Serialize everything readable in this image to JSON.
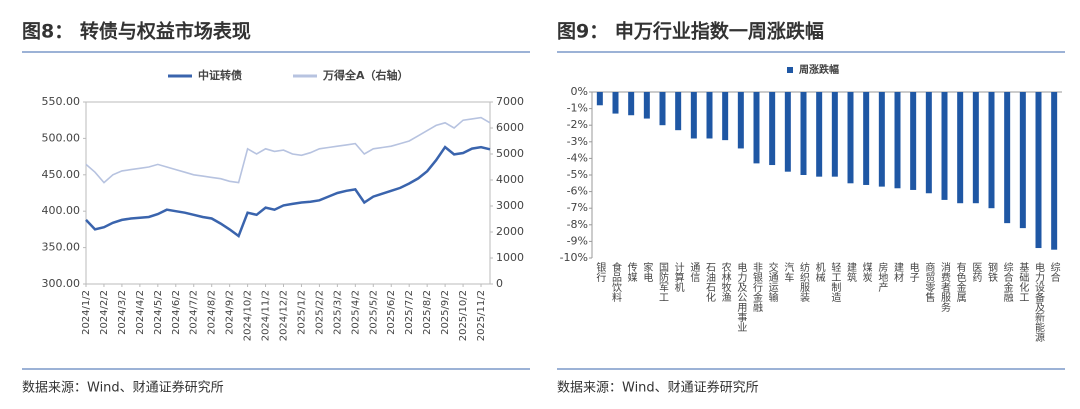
{
  "chart_data": [
    {
      "type": "line",
      "title": "图8： 转债与权益市场表现",
      "source": "数据来源：Wind、财通证券研究所",
      "categories": [
        "2024/1/2",
        null,
        "2024/2/2",
        null,
        "2024/3/2",
        null,
        "2024/4/2",
        null,
        "2024/5/2",
        null,
        "2024/6/2",
        null,
        "2024/7/2",
        null,
        "2024/8/2",
        null,
        "2024/9/2",
        null,
        "2024/10/2",
        null,
        "2024/11/2",
        null,
        "2024/12/2",
        null,
        "2025/1/2",
        null,
        "2025/2/2",
        null,
        "2025/3/2",
        null,
        "2025/4/2",
        null,
        "2025/5/2",
        null,
        "2025/6/2",
        null,
        "2025/7/2",
        null,
        "2025/8/2",
        null,
        "2025/9/2",
        null,
        "2025/10/2",
        null,
        "2025/11/2",
        null
      ],
      "series": [
        {
          "name": "中证转债",
          "color": "#3a64ad",
          "values": [
            388,
            375,
            378,
            384,
            388,
            390,
            391,
            392,
            396,
            402,
            400,
            398,
            395,
            392,
            390,
            383,
            375,
            366,
            398,
            395,
            405,
            402,
            408,
            410,
            412,
            413,
            415,
            420,
            425,
            428,
            430,
            412,
            420,
            424,
            428,
            432,
            438,
            445,
            455,
            470,
            488,
            478,
            480,
            486,
            488,
            485
          ]
        },
        {
          "name": "万得全A（右轴）",
          "color": "#b7c3e0",
          "axis": "y2",
          "values": [
            4600,
            4300,
            3900,
            4200,
            4350,
            4400,
            4450,
            4500,
            4600,
            4500,
            4400,
            4300,
            4200,
            4150,
            4100,
            4050,
            3950,
            3900,
            5200,
            5000,
            5200,
            5100,
            5150,
            5000,
            4950,
            5050,
            5200,
            5250,
            5300,
            5350,
            5400,
            5000,
            5200,
            5250,
            5300,
            5400,
            5500,
            5700,
            5900,
            6100,
            6200,
            6000,
            6300,
            6350,
            6400,
            6200
          ]
        }
      ],
      "ylim": [
        300,
        550
      ],
      "yticks": [
        {
          "value": 300,
          "label": "300.00"
        },
        {
          "value": 350,
          "label": "350.00"
        },
        {
          "value": 400,
          "label": "400.00"
        },
        {
          "value": 450,
          "label": "450.00"
        },
        {
          "value": 500,
          "label": "500.00"
        },
        {
          "value": 550,
          "label": "550.00"
        }
      ],
      "y2lim": [
        0,
        7000
      ],
      "y2ticks": [
        0,
        1000,
        2000,
        3000,
        4000,
        5000,
        6000,
        7000
      ],
      "legend": "top"
    },
    {
      "type": "bar",
      "title": "图9： 申万行业指数一周涨跌幅",
      "source": "数据来源：Wind、财通证券研究所",
      "categories": [
        "银行",
        "食品饮料",
        "传媒",
        "家电",
        "国防军工",
        "计算机",
        "通信",
        "石油石化",
        "农林牧渔",
        "电力及公用事业",
        "非银行金融",
        "交通运输",
        "汽车",
        "纺织服装",
        "机械",
        "轻工制造",
        "建筑",
        "煤炭",
        "房地产",
        "建材",
        "电子",
        "商贸零售",
        "消费者服务",
        "有色金属",
        "医药",
        "钢铁",
        "综合金融",
        "基础化工",
        "电力设备及新能源",
        "综合"
      ],
      "series": [
        {
          "name": "周涨跌幅",
          "color": "#1f57a4",
          "values": [
            -0.8,
            -1.3,
            -1.4,
            -1.6,
            -2.0,
            -2.3,
            -2.8,
            -2.8,
            -2.9,
            -3.4,
            -4.3,
            -4.4,
            -4.8,
            -5.0,
            -5.1,
            -5.1,
            -5.5,
            -5.6,
            -5.7,
            -5.8,
            -5.9,
            -6.1,
            -6.5,
            -6.7,
            -6.7,
            -7.0,
            -7.9,
            -8.2,
            -9.4,
            -9.5
          ]
        }
      ],
      "ylim": [
        -10,
        0
      ],
      "yticks": [
        {
          "value": 0,
          "label": "0%"
        },
        {
          "value": -1,
          "label": "-1%"
        },
        {
          "value": -2,
          "label": "-2%"
        },
        {
          "value": -3,
          "label": "-3%"
        },
        {
          "value": -4,
          "label": "-4%"
        },
        {
          "value": -5,
          "label": "-5%"
        },
        {
          "value": -6,
          "label": "-6%"
        },
        {
          "value": -7,
          "label": "-7%"
        },
        {
          "value": -8,
          "label": "-8%"
        },
        {
          "value": -9,
          "label": "-9%"
        },
        {
          "value": -10,
          "label": "-10%"
        }
      ],
      "legend": "top"
    }
  ]
}
